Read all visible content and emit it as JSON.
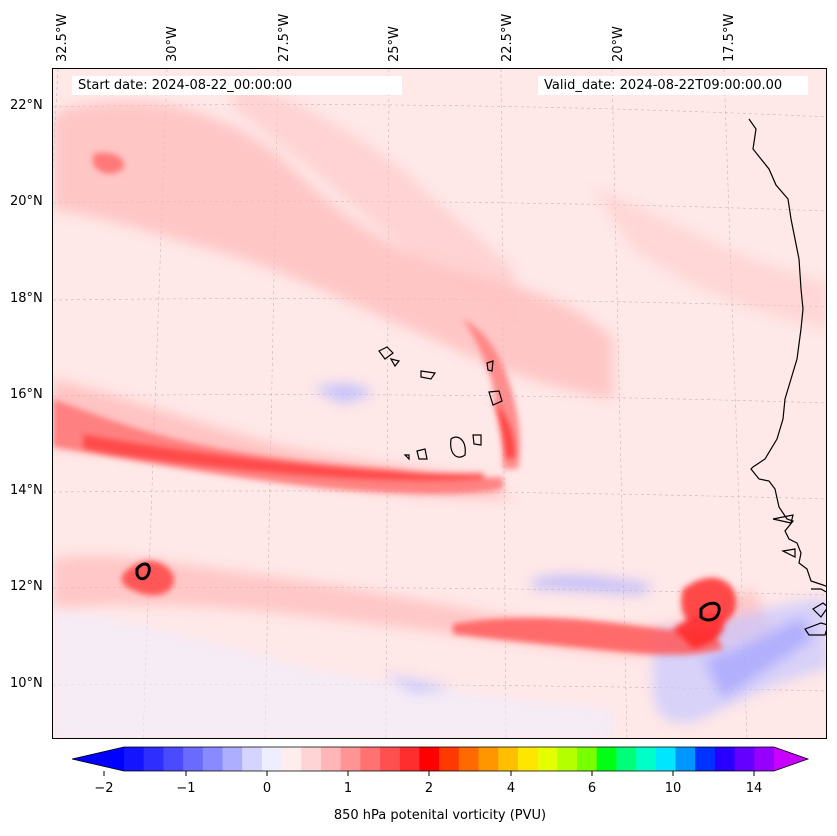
{
  "map": {
    "lon_ticks": [
      "32.5°W",
      "30°W",
      "27.5°W",
      "25°W",
      "22.5°W",
      "20°W",
      "17.5°W"
    ],
    "lat_ticks": [
      "22°N",
      "20°N",
      "18°N",
      "16°N",
      "14°N",
      "12°N",
      "10°N"
    ],
    "start_date": "Start date: 2024-08-22_00:00:00",
    "valid_date": "Valid_date: 2024-08-22T09:00:00.00",
    "colorbar": {
      "title": "850 hPa potenital vorticity (PVU)",
      "ticks": [
        "−2",
        "−1",
        "0",
        "1",
        "2",
        "4",
        "6",
        "10",
        "14"
      ],
      "colors": [
        "#1414ff",
        "#2e2eff",
        "#4a4aff",
        "#6a6aff",
        "#8a8aff",
        "#aeaeff",
        "#d4d4ff",
        "#eeeeff",
        "#ffecec",
        "#ffd4d4",
        "#ffb6b6",
        "#ff9494",
        "#ff7272",
        "#ff5050",
        "#ff2e2e",
        "#ff0000",
        "#ff3a00",
        "#ff6a00",
        "#ff9600",
        "#ffbe00",
        "#ffe600",
        "#e6ff00",
        "#b4ff00",
        "#78ff00",
        "#00ff14",
        "#00ff78",
        "#00ffc8",
        "#00e6ff",
        "#0096ff",
        "#0032ff",
        "#2800ff",
        "#6400ff",
        "#9600ff"
      ],
      "arrow_low": "#0000ff",
      "arrow_high": "#c800ff"
    }
  }
}
